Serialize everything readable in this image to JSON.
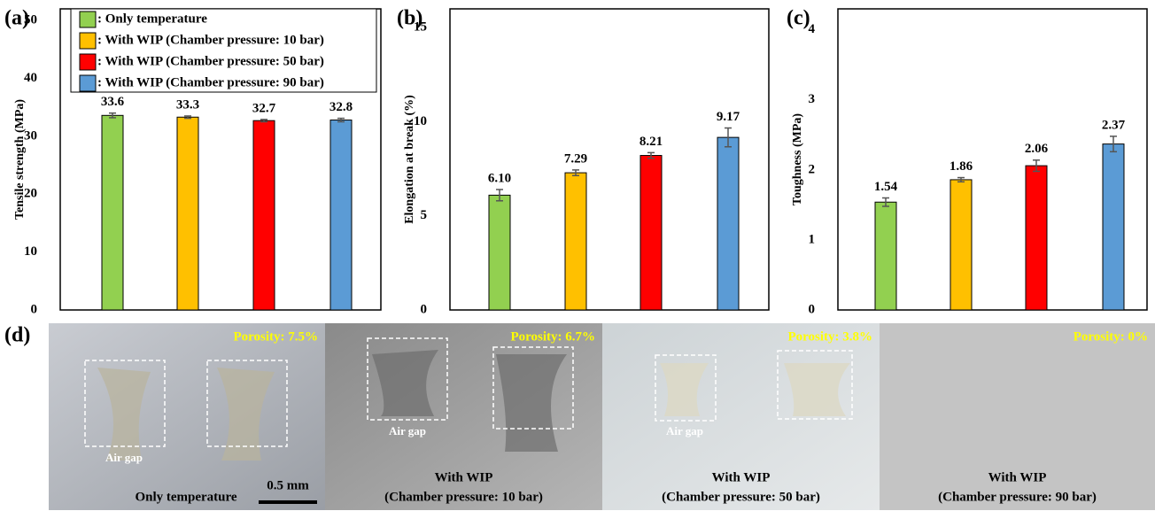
{
  "chart_data": [
    {
      "type": "bar",
      "panel_label": "(a)",
      "y_label": "Tensile strength (MPa)",
      "ylim": [
        0,
        52
      ],
      "yticks": [
        0,
        10,
        20,
        30,
        40,
        50
      ],
      "series": [
        {
          "name": ": Only  temperature",
          "color": "#92d050",
          "values": [
            33.6
          ],
          "errors": [
            0.4
          ]
        },
        {
          "name": ": With WIP (Chamber pressure: 10 bar)",
          "color": "#ffc000",
          "values": [
            33.3
          ],
          "errors": [
            0.2
          ]
        },
        {
          "name": ": With WIP (Chamber pressure: 50 bar)",
          "color": "#ff0000",
          "values": [
            32.7
          ],
          "errors": [
            0.2
          ]
        },
        {
          "name": ": With WIP (Chamber pressure: 90 bar)",
          "color": "#5b9bd5",
          "values": [
            32.8
          ],
          "errors": [
            0.3
          ]
        }
      ]
    },
    {
      "type": "bar",
      "panel_label": "(b)",
      "y_label": "Elongation at break (%)",
      "ylim": [
        0,
        16
      ],
      "yticks": [
        0,
        5,
        10,
        15
      ],
      "series": [
        {
          "color": "#92d050",
          "values": [
            6.1
          ],
          "value_labels": [
            "6.10"
          ],
          "errors": [
            0.3
          ]
        },
        {
          "color": "#ffc000",
          "values": [
            7.29
          ],
          "errors": [
            0.15
          ]
        },
        {
          "color": "#ff0000",
          "values": [
            8.21
          ],
          "errors": [
            0.15
          ]
        },
        {
          "color": "#5b9bd5",
          "values": [
            9.17
          ],
          "errors": [
            0.5
          ]
        }
      ]
    },
    {
      "type": "bar",
      "panel_label": "(c)",
      "y_label": "Toughness (MPa)",
      "ylim": [
        0,
        4.3
      ],
      "yticks": [
        0,
        1,
        2,
        3,
        4
      ],
      "series": [
        {
          "color": "#92d050",
          "values": [
            1.54
          ],
          "errors": [
            0.06
          ]
        },
        {
          "color": "#ffc000",
          "values": [
            1.86
          ],
          "errors": [
            0.03
          ]
        },
        {
          "color": "#ff0000",
          "values": [
            2.06
          ],
          "errors": [
            0.08
          ]
        },
        {
          "color": "#5b9bd5",
          "values": [
            2.37
          ],
          "errors": [
            0.11
          ]
        }
      ]
    }
  ],
  "micrographs": {
    "panel_label": "(d)",
    "scale_bar": "0.5 mm",
    "images": [
      {
        "porosity": "Porosity: 7.5%",
        "air_gap": "Air gap",
        "caption": [
          "Only temperature"
        ]
      },
      {
        "porosity": "Porosity: 6.7%",
        "air_gap": "Air gap",
        "caption": [
          "With WIP",
          "(Chamber pressure:  10 bar)"
        ]
      },
      {
        "porosity": "Porosity: 3.8%",
        "air_gap": "Air gap",
        "caption": [
          "With WIP",
          "(Chamber pressure:  50 bar)"
        ]
      },
      {
        "porosity": "Porosity: 0%",
        "caption": [
          "With WIP",
          "(Chamber pressure:  90 bar)"
        ]
      }
    ]
  }
}
